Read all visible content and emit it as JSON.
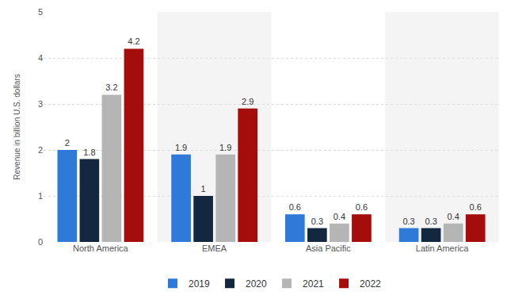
{
  "chart_data": {
    "type": "bar",
    "y_label": "Revenue in billion U.S. dollars",
    "categories": [
      "North America",
      "EMEA",
      "Asia Pacific",
      "Latin America"
    ],
    "series": [
      {
        "name": "2019",
        "color": "#2f7ad8",
        "values": [
          2,
          1.9,
          0.6,
          0.3
        ]
      },
      {
        "name": "2020",
        "color": "#13283f",
        "values": [
          1.8,
          1,
          0.3,
          0.3
        ]
      },
      {
        "name": "2021",
        "color": "#b5b5b5",
        "values": [
          3.2,
          1.9,
          0.4,
          0.4
        ]
      },
      {
        "name": "2022",
        "color": "#a50d0d",
        "values": [
          4.2,
          2.9,
          0.6,
          0.6
        ]
      }
    ],
    "ylim": [
      0,
      5
    ],
    "yticks": [
      0,
      1,
      2,
      3,
      4,
      5
    ],
    "grid": true,
    "legend": "bottom",
    "data_labels": true
  }
}
